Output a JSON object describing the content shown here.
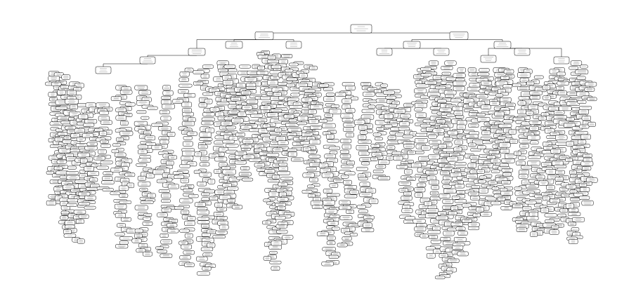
{
  "diagram": {
    "type": "decision-tree",
    "colors": {
      "background": "#ffffff",
      "edge": "#000000",
      "node_fill": "#ffffff",
      "node_border": "#000000",
      "node_text": "#555555"
    },
    "node_text_legible": false
  }
}
